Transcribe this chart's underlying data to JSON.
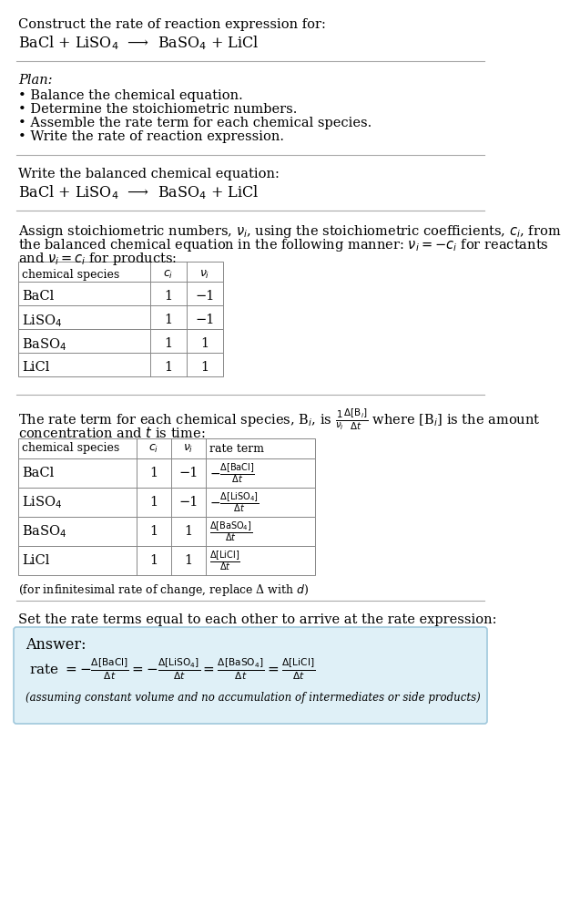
{
  "bg_color": "#ffffff",
  "title_line1": "Construct the rate of reaction expression for:",
  "title_eq": "BaCl + LiSO$_4$  ⟶  BaSO$_4$ + LiCl",
  "plan_header": "Plan:",
  "plan_items": [
    "• Balance the chemical equation.",
    "• Determine the stoichiometric numbers.",
    "• Assemble the rate term for each chemical species.",
    "• Write the rate of reaction expression."
  ],
  "balanced_header": "Write the balanced chemical equation:",
  "balanced_eq": "BaCl + LiSO$_4$  ⟶  BaSO$_4$ + LiCl",
  "stoich_intro1": "Assign stoichiometric numbers, $\\nu_i$, using the stoichiometric coefficients, $c_i$, from",
  "stoich_intro2": "the balanced chemical equation in the following manner: $\\nu_i = -c_i$ for reactants",
  "stoich_intro3": "and $\\nu_i = c_i$ for products:",
  "table1_headers": [
    "chemical species",
    "$c_i$",
    "$\\nu_i$"
  ],
  "table1_data": [
    [
      "BaCl",
      "1",
      "−1"
    ],
    [
      "LiSO$_4$",
      "1",
      "−1"
    ],
    [
      "BaSO$_4$",
      "1",
      "1"
    ],
    [
      "LiCl",
      "1",
      "1"
    ]
  ],
  "rate_intro1": "The rate term for each chemical species, B$_i$, is $\\frac{1}{\\nu_i}\\frac{\\Delta[\\mathrm{B}_i]}{\\Delta t}$ where [B$_i$] is the amount",
  "rate_intro2": "concentration and $t$ is time:",
  "table2_headers": [
    "chemical species",
    "$c_i$",
    "$\\nu_i$",
    "rate term"
  ],
  "table2_data": [
    [
      "BaCl",
      "1",
      "−1",
      "$-\\frac{\\Delta[\\mathrm{BaCl}]}{\\Delta t}$"
    ],
    [
      "LiSO$_4$",
      "1",
      "−1",
      "$-\\frac{\\Delta[\\mathrm{LiSO_4}]}{\\Delta t}$"
    ],
    [
      "BaSO$_4$",
      "1",
      "1",
      "$\\frac{\\Delta[\\mathrm{BaSO_4}]}{\\Delta t}$"
    ],
    [
      "LiCl",
      "1",
      "1",
      "$\\frac{\\Delta[\\mathrm{LiCl}]}{\\Delta t}$"
    ]
  ],
  "infinitesimal_note": "(for infinitesimal rate of change, replace Δ with $d$)",
  "set_equal_text": "Set the rate terms equal to each other to arrive at the rate expression:",
  "answer_label": "Answer:",
  "answer_box_color": "#dff0f7",
  "answer_box_border": "#a0c8dc",
  "answer_eq": "rate $= -\\frac{\\Delta[\\mathrm{BaCl}]}{\\Delta t} = -\\frac{\\Delta[\\mathrm{LiSO_4}]}{\\Delta t} = \\frac{\\Delta[\\mathrm{BaSO_4}]}{\\Delta t} = \\frac{\\Delta[\\mathrm{LiCl}]}{\\Delta t}$",
  "answer_note": "(assuming constant volume and no accumulation of intermediates or side products)",
  "fs": 10.5,
  "fs_small": 9.0,
  "fs_eq": 11.5,
  "monospace_family": "DejaVu Sans Mono",
  "serif_family": "DejaVu Serif"
}
